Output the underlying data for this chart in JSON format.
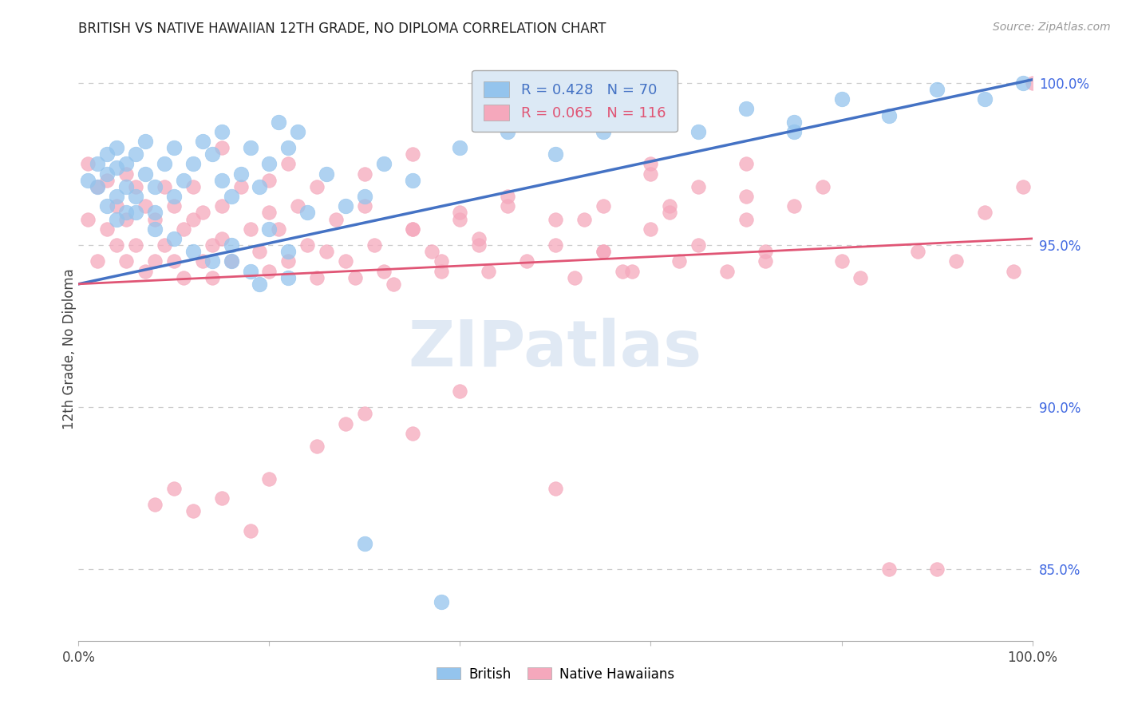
{
  "title": "BRITISH VS NATIVE HAWAIIAN 12TH GRADE, NO DIPLOMA CORRELATION CHART",
  "source": "Source: ZipAtlas.com",
  "ylabel": "12th Grade, No Diploma",
  "xlim": [
    0.0,
    1.0
  ],
  "ylim": [
    0.828,
    1.008
  ],
  "yticks": [
    0.85,
    0.9,
    0.95,
    1.0
  ],
  "ytick_labels": [
    "85.0%",
    "90.0%",
    "95.0%",
    "100.0%"
  ],
  "xticks": [
    0.0,
    0.2,
    0.4,
    0.6,
    0.8,
    1.0
  ],
  "xtick_labels": [
    "0.0%",
    "",
    "",
    "",
    "",
    "100.0%"
  ],
  "british_R": 0.428,
  "british_N": 70,
  "hawaiian_R": 0.065,
  "hawaiian_N": 116,
  "british_color": "#94C4ED",
  "hawaiian_color": "#F5A8BC",
  "british_line_color": "#4472C4",
  "hawaiian_line_color": "#E05575",
  "legend_box_color": "#DCE9F5",
  "watermark_color": "#C8D8EC",
  "title_color": "#222222",
  "axis_label_color": "#444444",
  "tick_color_right": "#4169E1",
  "grid_color": "#cccccc",
  "british_line_x0": 0.0,
  "british_line_y0": 0.938,
  "british_line_x1": 1.0,
  "british_line_y1": 1.001,
  "hawaiian_line_x0": 0.0,
  "hawaiian_line_y0": 0.938,
  "hawaiian_line_x1": 1.0,
  "hawaiian_line_y1": 0.952,
  "british_scatter_x": [
    0.01,
    0.02,
    0.02,
    0.03,
    0.03,
    0.03,
    0.04,
    0.04,
    0.04,
    0.05,
    0.05,
    0.05,
    0.06,
    0.06,
    0.07,
    0.07,
    0.08,
    0.08,
    0.09,
    0.1,
    0.1,
    0.11,
    0.12,
    0.13,
    0.14,
    0.15,
    0.15,
    0.16,
    0.17,
    0.18,
    0.19,
    0.2,
    0.21,
    0.22,
    0.23,
    0.14,
    0.16,
    0.18,
    0.2,
    0.22,
    0.24,
    0.26,
    0.3,
    0.32,
    0.35,
    0.38,
    0.4,
    0.45,
    0.5,
    0.55,
    0.6,
    0.65,
    0.7,
    0.75,
    0.8,
    0.85,
    0.9,
    0.95,
    0.99,
    0.75,
    0.22,
    0.19,
    0.16,
    0.12,
    0.1,
    0.08,
    0.06,
    0.04,
    0.28,
    0.3
  ],
  "british_scatter_y": [
    0.97,
    0.968,
    0.975,
    0.962,
    0.972,
    0.978,
    0.965,
    0.974,
    0.98,
    0.968,
    0.975,
    0.96,
    0.965,
    0.978,
    0.972,
    0.982,
    0.968,
    0.96,
    0.975,
    0.965,
    0.98,
    0.97,
    0.975,
    0.982,
    0.978,
    0.97,
    0.985,
    0.965,
    0.972,
    0.98,
    0.968,
    0.975,
    0.988,
    0.98,
    0.985,
    0.945,
    0.95,
    0.942,
    0.955,
    0.948,
    0.96,
    0.972,
    0.858,
    0.975,
    0.97,
    0.84,
    0.98,
    0.985,
    0.978,
    0.985,
    0.99,
    0.985,
    0.992,
    0.988,
    0.995,
    0.99,
    0.998,
    0.995,
    1.0,
    0.985,
    0.94,
    0.938,
    0.945,
    0.948,
    0.952,
    0.955,
    0.96,
    0.958,
    0.962,
    0.965
  ],
  "hawaiian_scatter_x": [
    0.01,
    0.01,
    0.02,
    0.02,
    0.03,
    0.03,
    0.04,
    0.04,
    0.05,
    0.05,
    0.05,
    0.06,
    0.06,
    0.07,
    0.07,
    0.08,
    0.08,
    0.09,
    0.09,
    0.1,
    0.1,
    0.11,
    0.11,
    0.12,
    0.12,
    0.13,
    0.13,
    0.14,
    0.14,
    0.15,
    0.15,
    0.16,
    0.17,
    0.18,
    0.19,
    0.2,
    0.2,
    0.21,
    0.22,
    0.23,
    0.24,
    0.25,
    0.26,
    0.27,
    0.28,
    0.29,
    0.3,
    0.31,
    0.32,
    0.33,
    0.35,
    0.37,
    0.38,
    0.4,
    0.42,
    0.43,
    0.45,
    0.47,
    0.5,
    0.52,
    0.53,
    0.55,
    0.57,
    0.6,
    0.62,
    0.63,
    0.65,
    0.68,
    0.7,
    0.72,
    0.75,
    0.78,
    0.8,
    0.82,
    0.85,
    0.88,
    0.9,
    0.92,
    0.95,
    0.98,
    0.99,
    1.0,
    0.08,
    0.1,
    0.12,
    0.15,
    0.18,
    0.2,
    0.25,
    0.28,
    0.3,
    0.35,
    0.4,
    0.5,
    0.6,
    0.62,
    0.7,
    0.72,
    0.15,
    0.2,
    0.22,
    0.25,
    0.3,
    0.35,
    0.45,
    0.5,
    0.55,
    0.6,
    0.65,
    0.7,
    0.38,
    0.42,
    0.55,
    0.58,
    0.35,
    0.4
  ],
  "hawaiian_scatter_y": [
    0.975,
    0.958,
    0.968,
    0.945,
    0.955,
    0.97,
    0.962,
    0.95,
    0.958,
    0.972,
    0.945,
    0.968,
    0.95,
    0.962,
    0.942,
    0.958,
    0.945,
    0.968,
    0.95,
    0.945,
    0.962,
    0.955,
    0.94,
    0.958,
    0.968,
    0.945,
    0.96,
    0.95,
    0.94,
    0.962,
    0.952,
    0.945,
    0.968,
    0.955,
    0.948,
    0.96,
    0.942,
    0.955,
    0.945,
    0.962,
    0.95,
    0.94,
    0.948,
    0.958,
    0.945,
    0.94,
    0.962,
    0.95,
    0.942,
    0.938,
    0.955,
    0.948,
    0.942,
    0.958,
    0.95,
    0.942,
    0.962,
    0.945,
    0.95,
    0.94,
    0.958,
    0.948,
    0.942,
    0.955,
    0.962,
    0.945,
    0.95,
    0.942,
    0.958,
    0.948,
    0.962,
    0.968,
    0.945,
    0.94,
    0.85,
    0.948,
    0.85,
    0.945,
    0.96,
    0.942,
    0.968,
    1.0,
    0.87,
    0.875,
    0.868,
    0.872,
    0.862,
    0.878,
    0.888,
    0.895,
    0.898,
    0.892,
    0.905,
    0.875,
    0.975,
    0.96,
    0.965,
    0.945,
    0.98,
    0.97,
    0.975,
    0.968,
    0.972,
    0.978,
    0.965,
    0.958,
    0.962,
    0.972,
    0.968,
    0.975,
    0.945,
    0.952,
    0.948,
    0.942,
    0.955,
    0.96
  ]
}
